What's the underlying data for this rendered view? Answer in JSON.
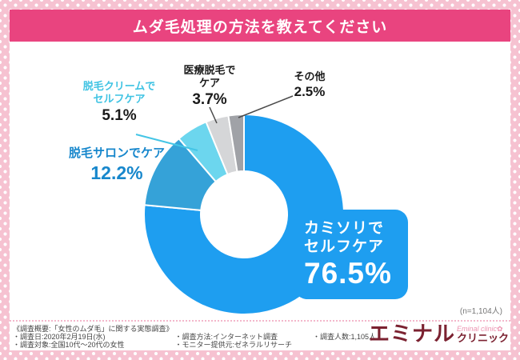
{
  "header": {
    "title": "ムダ毛処理の方法を教えてください"
  },
  "chart_data": {
    "type": "pie",
    "subtype": "donut",
    "title": "ムダ毛処理の方法を教えてください",
    "unit": "%",
    "sample_label": "(n=1,104人)",
    "start_angle_deg": 0,
    "direction": "clockwise",
    "slices": [
      {
        "label": "カミソリでセルフケア",
        "value": 76.5,
        "color": "#1E9EF0"
      },
      {
        "label": "脱毛サロンでケア",
        "value": 12.2,
        "color": "#35A2D8"
      },
      {
        "label": "脱毛クリームでセルフケア",
        "value": 5.1,
        "color": "#6CD6EE"
      },
      {
        "label": "医療脱毛でケア",
        "value": 3.7,
        "color": "#D5D6D8"
      },
      {
        "label": "その他",
        "value": 2.5,
        "color": "#A0A2A7"
      }
    ]
  },
  "callouts": {
    "razor": {
      "line1": "カミソリで",
      "line2": "セルフケア",
      "value": "76.5%"
    },
    "salon": {
      "name": "脱毛サロンでケア",
      "value": "12.2%"
    },
    "cream": {
      "line1": "脱毛クリームで",
      "line2": "セルフケア",
      "value": "5.1%"
    },
    "medical": {
      "line1": "医療脱毛で",
      "line2": "ケア",
      "value": "3.7%"
    },
    "other": {
      "name": "その他",
      "value": "2.5%"
    }
  },
  "annotations": {
    "n_label": "(n=1,104人)"
  },
  "footer": {
    "title": "《調査概要:「女性のムダ毛」に関する実態調査》",
    "row1_col1": "・調査日:2020年2月19日(水)",
    "row1_col2": "・調査方法:インターネット調査",
    "row1_col3": "・調査人数:1,105人",
    "row2_col1": "・調査対象:全国10代〜20代の女性",
    "row2_col2": "・モニター提供元:ゼネラルリサーチ"
  },
  "logo": {
    "script": "Eminal clinic✿",
    "main": "エミナル",
    "sub": "クリニック"
  }
}
